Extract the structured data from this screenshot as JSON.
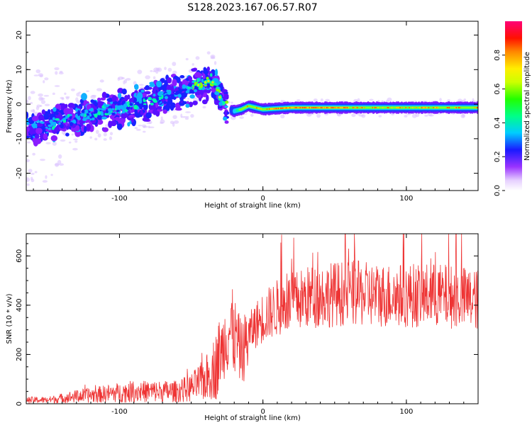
{
  "figure": {
    "title": "S128.2023.167.06.57.R07"
  },
  "chart_data": [
    {
      "type": "heatmap",
      "name": "spectrogram",
      "xlabel": "Height of straight line (km)",
      "ylabel": "Frequency (Hz)",
      "xlim": [
        -165,
        150
      ],
      "ylim": [
        -25,
        24
      ],
      "xticks": [
        -100,
        0,
        100
      ],
      "xtick_labels": [
        "-100",
        "0",
        "100"
      ],
      "yticks": [
        -20,
        -10,
        0,
        10,
        20
      ],
      "ytick_labels": [
        "-20",
        "-10",
        "0",
        "10",
        "20"
      ],
      "ridge": {
        "x": [
          -165,
          -150,
          -130,
          -110,
          -90,
          -70,
          -55,
          -42,
          -36,
          -33,
          -30,
          -27,
          -24,
          -20,
          -15,
          -10,
          -5,
          0,
          20,
          50,
          80,
          110,
          140,
          150
        ],
        "y": [
          -7,
          -6,
          -4,
          -2,
          0,
          2,
          4,
          6,
          7,
          5,
          2,
          0,
          -1.5,
          -2,
          -1.5,
          -0.5,
          -1,
          -1.5,
          -1,
          -1,
          -1,
          -1,
          -1,
          -1
        ]
      },
      "colorbar": {
        "label": "Normalized spectral amplitude",
        "range": [
          0.0,
          1.0
        ],
        "ticks": [
          0.0,
          0.2,
          0.4,
          0.6,
          0.8
        ],
        "tick_labels": [
          "0.0",
          "0.2",
          "0.4",
          "0.6",
          "0.8"
        ]
      },
      "grid": false
    },
    {
      "type": "line",
      "name": "snr",
      "xlabel": "Height of straight line (km)",
      "ylabel": "SNR (10 * v/v)",
      "xlim": [
        -165,
        150
      ],
      "ylim": [
        0,
        690
      ],
      "xticks": [
        -100,
        0,
        100
      ],
      "xtick_labels": [
        "-100",
        "0",
        "100"
      ],
      "yticks": [
        0,
        200,
        400,
        600
      ],
      "ytick_labels": [
        "0",
        "200",
        "400",
        "600"
      ],
      "series": [
        {
          "color": "#ee3333",
          "x": [
            -165,
            -150,
            -130,
            -110,
            -90,
            -80,
            -70,
            -60,
            -50,
            -40,
            -32,
            -28,
            -25,
            -22,
            -18,
            -16,
            -14,
            -10,
            -5,
            0,
            10,
            20,
            30,
            40,
            60,
            80,
            100,
            120,
            140,
            150
          ],
          "y": [
            15,
            15,
            30,
            40,
            50,
            50,
            50,
            50,
            65,
            100,
            160,
            230,
            290,
            300,
            250,
            220,
            210,
            280,
            320,
            350,
            390,
            410,
            430,
            440,
            450,
            440,
            440,
            440,
            430,
            420
          ]
        }
      ],
      "grid": false
    }
  ]
}
